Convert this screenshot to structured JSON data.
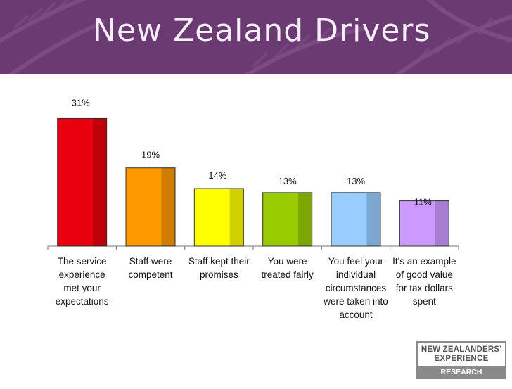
{
  "header": {
    "title": "New Zealand Drivers",
    "background_color": "#6b3a73"
  },
  "chart_data": {
    "type": "bar",
    "title": "",
    "xlabel": "",
    "ylabel": "",
    "ylim": [
      0,
      35
    ],
    "grid": false,
    "categories": [
      "The service experience met your expectations",
      "Staff were competent",
      "Staff kept their promises",
      "You were treated fairly",
      "You feel your individual circumstances were taken into account",
      "It's an example of good value for tax dollars spent"
    ],
    "category_lines": [
      [
        "The service",
        "experience",
        "met your",
        "expectations"
      ],
      [
        "Staff were",
        "competent"
      ],
      [
        "Staff kept their",
        "promises"
      ],
      [
        "You were",
        "treated fairly"
      ],
      [
        "You feel your",
        "individual",
        "circumstances",
        "were taken into",
        "account"
      ],
      [
        "It's an example",
        "of good value",
        "for tax dollars",
        "spent"
      ]
    ],
    "values": [
      31,
      19,
      14,
      13,
      13,
      11
    ],
    "data_labels": [
      "31%",
      "19%",
      "14%",
      "13%",
      "13%",
      "11%"
    ],
    "bar_colors": [
      "#e8000e",
      "#ff9900",
      "#ffff00",
      "#99cc00",
      "#99ccff",
      "#cc99ff"
    ]
  },
  "logo": {
    "line1": "NEW ZEALANDERS'",
    "line2": "EXPERIENCE",
    "line3": "RESEARCH PROGRAMME"
  }
}
